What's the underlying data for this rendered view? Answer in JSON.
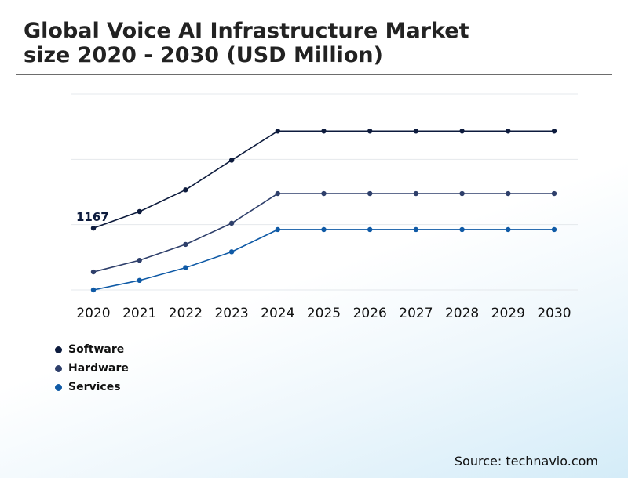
{
  "title_line1": "Global Voice AI Infrastructure Market",
  "title_line2": "size 2020 - 2030 (USD Million)",
  "source": "Source: technavio.com",
  "colors": {
    "software": "#0d1b3d",
    "hardware": "#2e3f6b",
    "services": "#0f5aa6",
    "grid": "#e4e8ec"
  },
  "chart_data": {
    "type": "line",
    "title": "Global Voice AI Infrastructure Market size 2020 - 2030 (USD Million)",
    "x": [
      "2020",
      "2021",
      "2022",
      "2023",
      "2024",
      "2025",
      "2026",
      "2027",
      "2028",
      "2029",
      "2030"
    ],
    "ylim": [
      0,
      3700
    ],
    "grid": true,
    "legend_position": "bottom-left",
    "annotations": [
      {
        "series": "Software",
        "x": "2020",
        "text": "1167"
      }
    ],
    "series": [
      {
        "name": "Software",
        "color": "#0d1b3d",
        "values": [
          1167,
          1480,
          1890,
          2450,
          3000,
          3000,
          3000,
          3000,
          3000,
          3000,
          3000
        ]
      },
      {
        "name": "Hardware",
        "color": "#2e3f6b",
        "values": [
          340,
          560,
          860,
          1260,
          1820,
          1820,
          1820,
          1820,
          1820,
          1820,
          1820
        ]
      },
      {
        "name": "Services",
        "color": "#0f5aa6",
        "values": [
          0,
          180,
          420,
          720,
          1140,
          1140,
          1140,
          1140,
          1140,
          1140,
          1140
        ]
      }
    ]
  }
}
